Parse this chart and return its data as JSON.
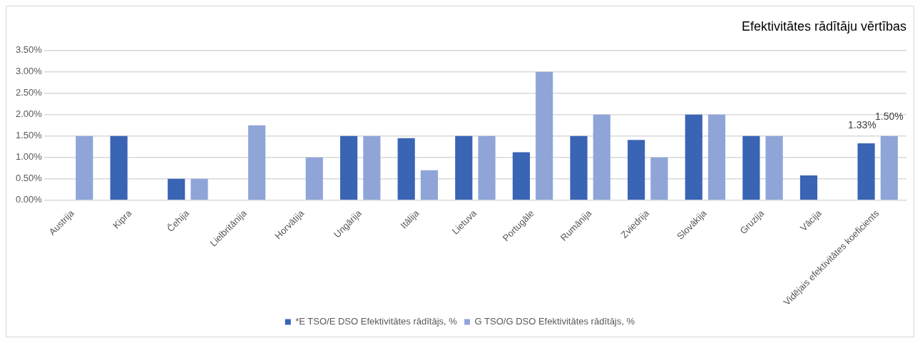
{
  "chart_data": {
    "type": "bar",
    "title": "Efektivitātes rādītāju vērtības",
    "categories": [
      "Austrija",
      "Kipra",
      "Čehija",
      "Lielbritānija",
      "Horvātija",
      "Ungārija",
      "Itālija",
      "Lietuva",
      "Portugāle",
      "Rumānija",
      "Zviedrija",
      "Slovākija",
      "Gruzija",
      "Vācija",
      "Vidējais efektivitātes koeficients"
    ],
    "series": [
      {
        "name": "*E TSO/E DSO Efektivitātes rādītājs, %",
        "color": "#3a64b4",
        "values": [
          null,
          1.5,
          0.5,
          null,
          null,
          1.5,
          1.45,
          1.5,
          1.12,
          1.5,
          1.41,
          2.0,
          1.5,
          0.58,
          1.33
        ],
        "value_labels": [
          null,
          null,
          null,
          null,
          null,
          null,
          null,
          null,
          null,
          null,
          null,
          null,
          null,
          null,
          "1.33%"
        ]
      },
      {
        "name": "G TSO/G DSO Efektivitātes rādītājs, %",
        "color": "#8fa5d8",
        "values": [
          1.5,
          null,
          0.5,
          1.75,
          1.0,
          1.5,
          0.7,
          1.5,
          3.0,
          2.0,
          1.0,
          2.0,
          1.5,
          null,
          1.5
        ],
        "value_labels": [
          null,
          null,
          null,
          null,
          null,
          null,
          null,
          null,
          null,
          null,
          null,
          null,
          null,
          null,
          "1.50%"
        ]
      }
    ],
    "ylim": [
      0,
      3.5
    ],
    "yticks": [
      {
        "value": 0,
        "label": "0.00%"
      },
      {
        "value": 0.5,
        "label": "0.50%"
      },
      {
        "value": 1,
        "label": "1.00%"
      },
      {
        "value": 1.5,
        "label": "1.50%"
      },
      {
        "value": 2,
        "label": "2.00%"
      },
      {
        "value": 2.5,
        "label": "2.50%"
      },
      {
        "value": 3,
        "label": "3.00%"
      },
      {
        "value": 3.5,
        "label": "3.50%"
      }
    ],
    "grid": "y",
    "legend": "bottom"
  }
}
